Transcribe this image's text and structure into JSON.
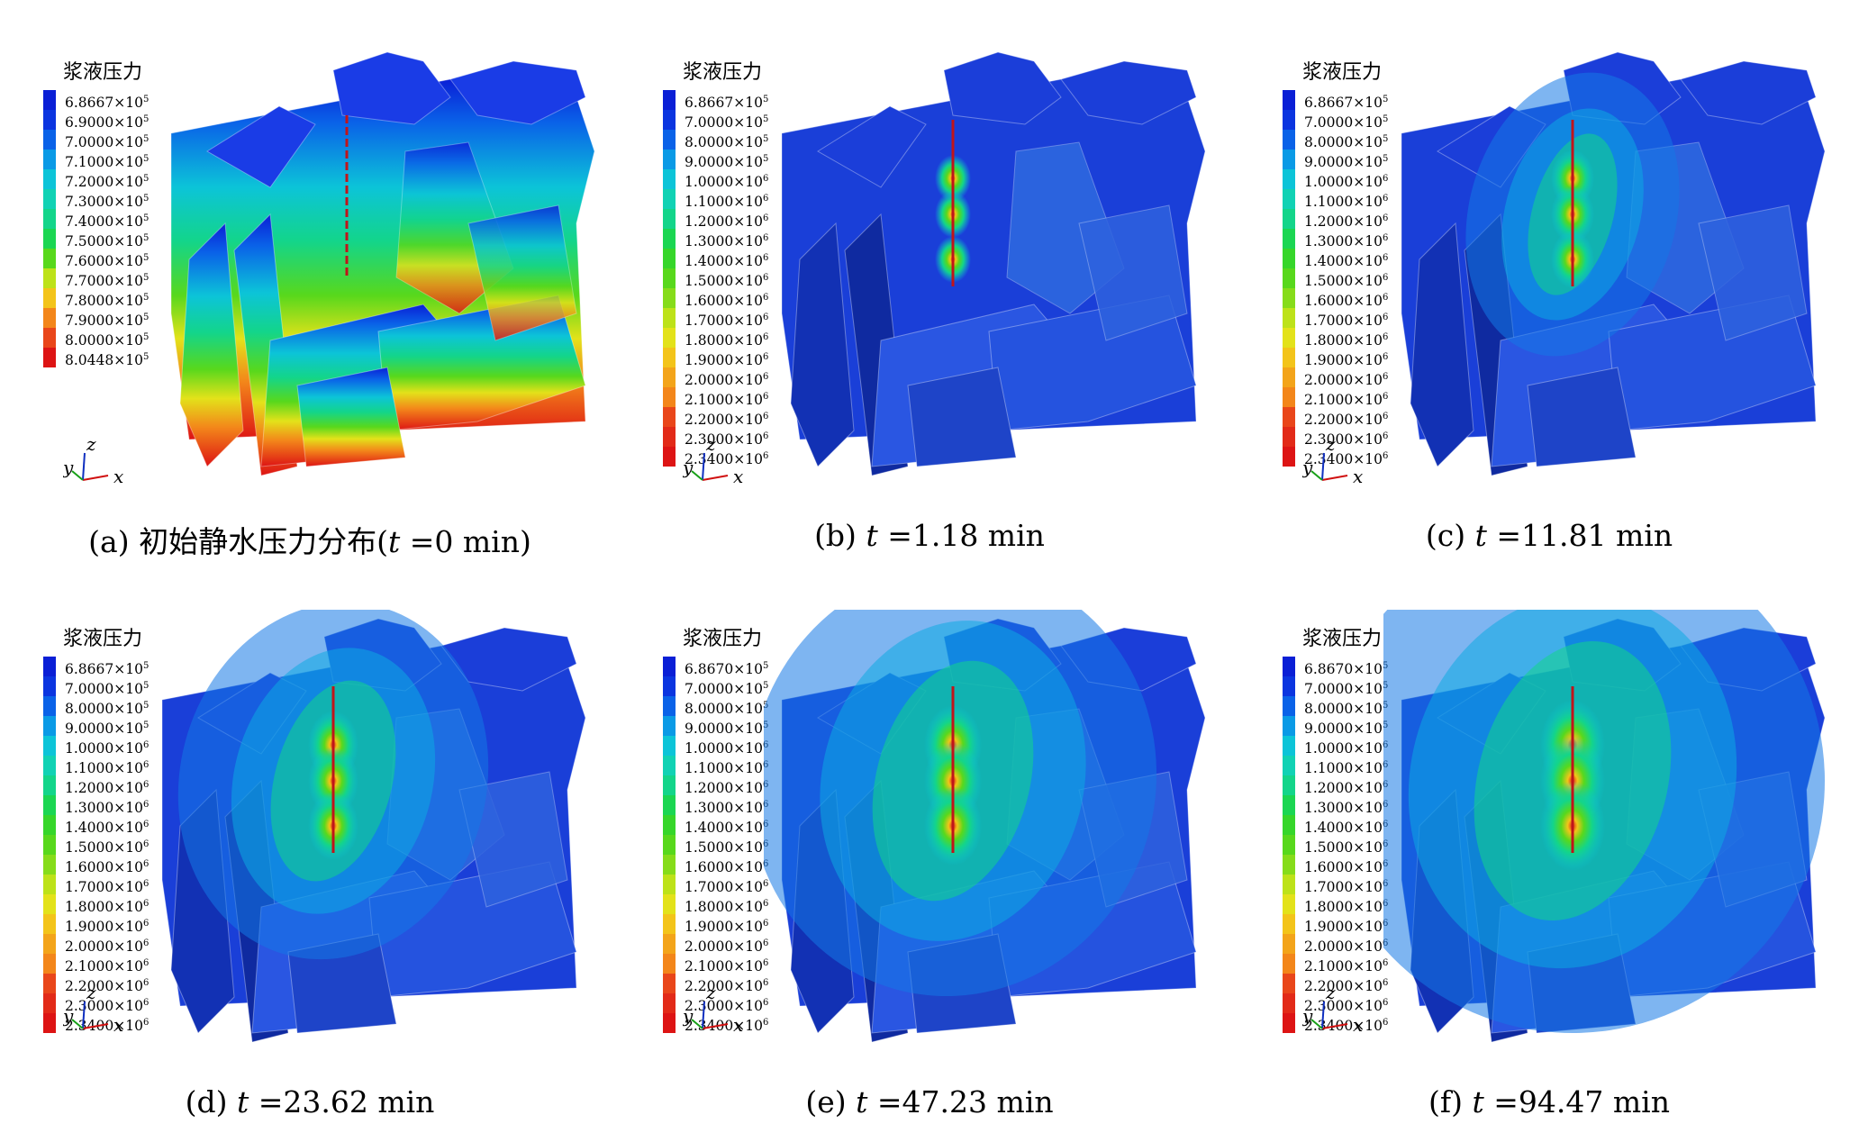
{
  "legend_title": "浆液压力",
  "panels": [
    {
      "caption_pre": "(a)  初始静水压力分布(",
      "caption_var": "t",
      "caption_post": " =0 min)",
      "scheme": "initial",
      "legend": [
        {
          "label": "6.8667×10",
          "exp": "5",
          "color": "#0a1fd6"
        },
        {
          "label": "6.9000×10",
          "exp": "5",
          "color": "#0b35e0"
        },
        {
          "label": "7.0000×10",
          "exp": "5",
          "color": "#0a62e8"
        },
        {
          "label": "7.1000×10",
          "exp": "5",
          "color": "#0a9ae6"
        },
        {
          "label": "7.2000×10",
          "exp": "5",
          "color": "#0cc4d8"
        },
        {
          "label": "7.3000×10",
          "exp": "5",
          "color": "#11d2b4"
        },
        {
          "label": "7.4000×10",
          "exp": "5",
          "color": "#13d58a"
        },
        {
          "label": "7.5000×10",
          "exp": "5",
          "color": "#1bd652"
        },
        {
          "label": "7.6000×10",
          "exp": "5",
          "color": "#58d81c"
        },
        {
          "label": "7.7000×10",
          "exp": "5",
          "color": "#bde219"
        },
        {
          "label": "7.8000×10",
          "exp": "5",
          "color": "#f3c41a"
        },
        {
          "label": "7.9000×10",
          "exp": "5",
          "color": "#f3861a"
        },
        {
          "label": "8.0000×10",
          "exp": "5",
          "color": "#e9461a"
        },
        {
          "label": "8.0448×10",
          "exp": "5",
          "color": "#dd1414"
        }
      ]
    },
    {
      "caption_pre": "(b) ",
      "caption_var": "t",
      "caption_post": " =1.18 min",
      "scheme": "grout1",
      "legend": []
    },
    {
      "caption_pre": "(c) ",
      "caption_var": "t",
      "caption_post": " =11.81 min",
      "scheme": "grout2",
      "legend": []
    },
    {
      "caption_pre": "(d) ",
      "caption_var": "t",
      "caption_post": " =23.62 min",
      "scheme": "grout3",
      "legend": []
    },
    {
      "caption_pre": "(e) ",
      "caption_var": "t",
      "caption_post": " =47.23 min",
      "scheme": "grout4",
      "legend": []
    },
    {
      "caption_pre": "(f) ",
      "caption_var": "t",
      "caption_post": " =94.47 min",
      "scheme": "grout5",
      "legend": []
    }
  ],
  "grout_legend_b_c_d": [
    {
      "label": "6.8667×10",
      "exp": "5",
      "color": "#0a1fd6"
    },
    {
      "label": "7.0000×10",
      "exp": "5",
      "color": "#0b35e0"
    },
    {
      "label": "8.0000×10",
      "exp": "5",
      "color": "#0a62e8"
    },
    {
      "label": "9.0000×10",
      "exp": "5",
      "color": "#0a9ae6"
    },
    {
      "label": "1.0000×10",
      "exp": "6",
      "color": "#0cc4d8"
    },
    {
      "label": "1.1000×10",
      "exp": "6",
      "color": "#11d2b4"
    },
    {
      "label": "1.2000×10",
      "exp": "6",
      "color": "#13d58a"
    },
    {
      "label": "1.3000×10",
      "exp": "6",
      "color": "#1bd652"
    },
    {
      "label": "1.4000×10",
      "exp": "6",
      "color": "#36d62a"
    },
    {
      "label": "1.5000×10",
      "exp": "6",
      "color": "#58d81c"
    },
    {
      "label": "1.6000×10",
      "exp": "6",
      "color": "#86dc1a"
    },
    {
      "label": "1.7000×10",
      "exp": "6",
      "color": "#bde219"
    },
    {
      "label": "1.8000×10",
      "exp": "6",
      "color": "#e3e21a"
    },
    {
      "label": "1.9000×10",
      "exp": "6",
      "color": "#f3c41a"
    },
    {
      "label": "2.0000×10",
      "exp": "6",
      "color": "#f3a41a"
    },
    {
      "label": "2.1000×10",
      "exp": "6",
      "color": "#f3861a"
    },
    {
      "label": "2.2000×10",
      "exp": "6",
      "color": "#e9461a"
    },
    {
      "label": "2.3000×10",
      "exp": "6",
      "color": "#e22a18"
    },
    {
      "label": "2.3400×10",
      "exp": "6",
      "color": "#dd1414"
    }
  ],
  "grout_legend_e_f": [
    {
      "label": "6.8670×10",
      "exp": "5",
      "color": "#0a1fd6"
    },
    {
      "label": "7.0000×10",
      "exp": "5",
      "color": "#0b35e0"
    },
    {
      "label": "8.0000×10",
      "exp": "5",
      "color": "#0a62e8"
    },
    {
      "label": "9.0000×10",
      "exp": "5",
      "color": "#0a9ae6"
    },
    {
      "label": "1.0000×10",
      "exp": "6",
      "color": "#0cc4d8"
    },
    {
      "label": "1.1000×10",
      "exp": "6",
      "color": "#11d2b4"
    },
    {
      "label": "1.2000×10",
      "exp": "6",
      "color": "#13d58a"
    },
    {
      "label": "1.3000×10",
      "exp": "6",
      "color": "#1bd652"
    },
    {
      "label": "1.4000×10",
      "exp": "6",
      "color": "#36d62a"
    },
    {
      "label": "1.5000×10",
      "exp": "6",
      "color": "#58d81c"
    },
    {
      "label": "1.6000×10",
      "exp": "6",
      "color": "#86dc1a"
    },
    {
      "label": "1.7000×10",
      "exp": "6",
      "color": "#bde219"
    },
    {
      "label": "1.8000×10",
      "exp": "6",
      "color": "#e3e21a"
    },
    {
      "label": "1.9000×10",
      "exp": "6",
      "color": "#f3c41a"
    },
    {
      "label": "2.0000×10",
      "exp": "6",
      "color": "#f3a41a"
    },
    {
      "label": "2.1000×10",
      "exp": "6",
      "color": "#f3861a"
    },
    {
      "label": "2.2000×10",
      "exp": "6",
      "color": "#e9461a"
    },
    {
      "label": "2.3000×10",
      "exp": "6",
      "color": "#e22a18"
    },
    {
      "label": "2.3400×10",
      "exp": "6",
      "color": "#dd1414"
    }
  ],
  "axes": {
    "x": "x",
    "y": "y",
    "z": "z"
  }
}
